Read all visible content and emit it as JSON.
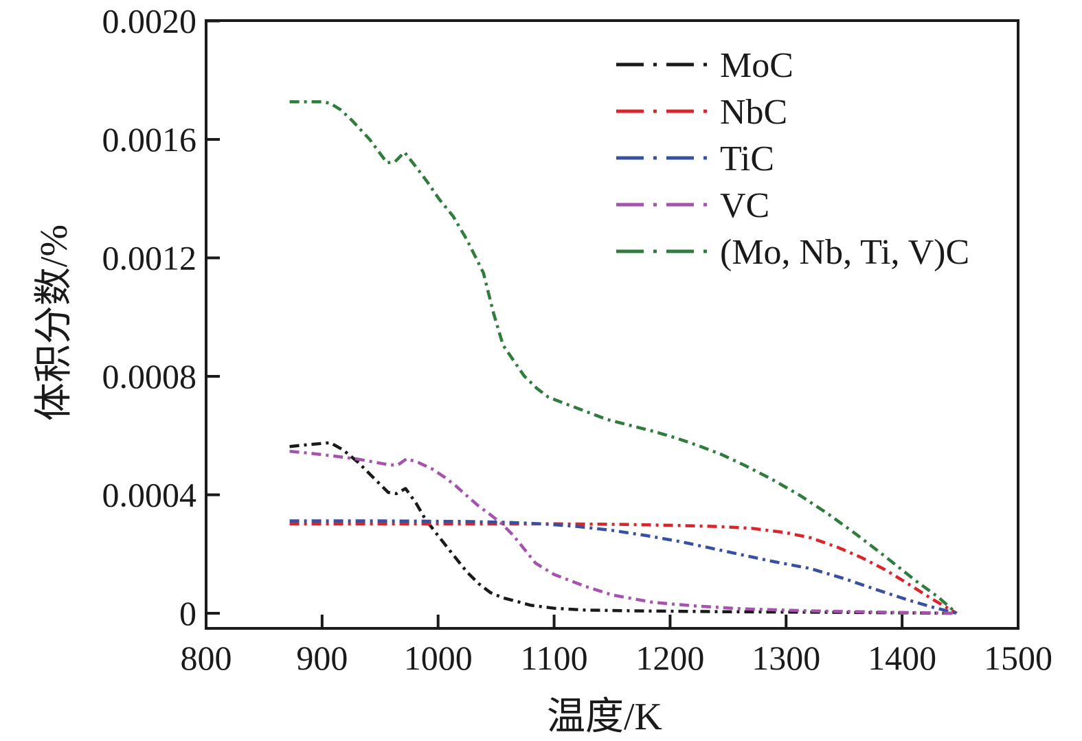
{
  "figure": {
    "background": "#ffffff",
    "text_color": "#1a1a1a"
  },
  "chart_data": {
    "type": "line",
    "title": "",
    "xlabel": "温度/K",
    "ylabel": "体积分数/%",
    "xlim": [
      800,
      1500
    ],
    "ylim": [
      -5e-05,
      0.002
    ],
    "xticks": [
      800,
      900,
      1000,
      1100,
      1200,
      1300,
      1400,
      1500
    ],
    "yticks": [
      0,
      0.0004,
      0.0008,
      0.0012,
      0.0016,
      0.002
    ],
    "ytick_labels": [
      "0",
      "0.0004",
      "0.0008",
      "0.0012",
      "0.0016",
      "0.0020"
    ],
    "grid": false,
    "legend": {
      "position": "upper-right-inside",
      "line_style": "dash-dot"
    },
    "series": [
      {
        "name": "MoC",
        "color": "#1a1a1a",
        "points": [
          [
            872,
            0.000563
          ],
          [
            885,
            0.000568
          ],
          [
            907,
            0.000576
          ],
          [
            918,
            0.000552
          ],
          [
            931,
            0.00051
          ],
          [
            945,
            0.000455
          ],
          [
            957,
            0.000408
          ],
          [
            964,
            0.000404
          ],
          [
            972,
            0.000421
          ],
          [
            981,
            0.000372
          ],
          [
            989,
            0.000318
          ],
          [
            1000,
            0.000262
          ],
          [
            1011,
            0.000207
          ],
          [
            1025,
            0.000139
          ],
          [
            1035,
            0.0001
          ],
          [
            1045,
            7e-05
          ],
          [
            1056,
            5.2e-05
          ],
          [
            1066,
            4.2e-05
          ],
          [
            1080,
            2.7e-05
          ],
          [
            1100,
            1.7e-05
          ],
          [
            1126,
            1.1e-05
          ],
          [
            1170,
            8e-06
          ],
          [
            1250,
            5e-06
          ],
          [
            1350,
            3e-06
          ],
          [
            1447,
            0
          ]
        ]
      },
      {
        "name": "NbC",
        "color": "#d9262b",
        "points": [
          [
            872,
            0.000302
          ],
          [
            1000,
            0.000302
          ],
          [
            1100,
            0.000302
          ],
          [
            1160,
            0.0003
          ],
          [
            1200,
            0.000297
          ],
          [
            1240,
            0.000293
          ],
          [
            1270,
            0.000287
          ],
          [
            1300,
            0.000272
          ],
          [
            1321,
            0.000255
          ],
          [
            1345,
            0.000222
          ],
          [
            1365,
            0.000188
          ],
          [
            1385,
            0.000148
          ],
          [
            1405,
            0.0001
          ],
          [
            1425,
            5e-05
          ],
          [
            1447,
            0
          ]
        ]
      },
      {
        "name": "TiC",
        "color": "#3751a0",
        "points": [
          [
            872,
            0.000312
          ],
          [
            950,
            0.000312
          ],
          [
            1020,
            0.00031
          ],
          [
            1060,
            0.000307
          ],
          [
            1090,
            0.000302
          ],
          [
            1120,
            0.000293
          ],
          [
            1150,
            0.00028
          ],
          [
            1180,
            0.000262
          ],
          [
            1210,
            0.000241
          ],
          [
            1240,
            0.000216
          ],
          [
            1262,
            0.000197
          ],
          [
            1290,
            0.000174
          ],
          [
            1321,
            0.000151
          ],
          [
            1350,
            0.000117
          ],
          [
            1380,
            7.7e-05
          ],
          [
            1405,
            4.5e-05
          ],
          [
            1425,
            2.2e-05
          ],
          [
            1447,
            0
          ]
        ]
      },
      {
        "name": "VC",
        "color": "#a653ae",
        "points": [
          [
            872,
            0.000547
          ],
          [
            890,
            0.00054
          ],
          [
            910,
            0.000531
          ],
          [
            930,
            0.000521
          ],
          [
            947,
            0.000509
          ],
          [
            958,
            0.000501
          ],
          [
            965,
            0.0005
          ],
          [
            973,
            0.000522
          ],
          [
            983,
            0.000509
          ],
          [
            995,
            0.000487
          ],
          [
            1005,
            0.000461
          ],
          [
            1015,
            0.000431
          ],
          [
            1025,
            0.000396
          ],
          [
            1035,
            0.000362
          ],
          [
            1045,
            0.000333
          ],
          [
            1055,
            0.000302
          ],
          [
            1065,
            0.000262
          ],
          [
            1075,
            0.000213
          ],
          [
            1084,
            0.000169
          ],
          [
            1100,
            0.000131
          ],
          [
            1126,
            9.2e-05
          ],
          [
            1150,
            6.2e-05
          ],
          [
            1185,
            3.7e-05
          ],
          [
            1220,
            2.5e-05
          ],
          [
            1262,
            1.5e-05
          ],
          [
            1320,
            8e-06
          ],
          [
            1380,
            4e-06
          ],
          [
            1447,
            0
          ]
        ]
      },
      {
        "name": "(Mo, Nb, Ti, V)C",
        "color": "#2f7c3c",
        "points": [
          [
            872,
            0.001727
          ],
          [
            900,
            0.001727
          ],
          [
            907,
            0.001722
          ],
          [
            916,
            0.0017
          ],
          [
            926,
            0.001663
          ],
          [
            941,
            0.0016
          ],
          [
            956,
            0.001521
          ],
          [
            963,
            0.001525
          ],
          [
            971,
            0.001557
          ],
          [
            981,
            0.001507
          ],
          [
            991,
            0.001455
          ],
          [
            1001,
            0.001398
          ],
          [
            1013,
            0.00134
          ],
          [
            1025,
            0.00126
          ],
          [
            1039,
            0.00115
          ],
          [
            1048,
            0.00101
          ],
          [
            1056,
            0.000905
          ],
          [
            1066,
            0.000848
          ],
          [
            1074,
            0.000802
          ],
          [
            1085,
            0.00076
          ],
          [
            1095,
            0.00073
          ],
          [
            1108,
            0.00071
          ],
          [
            1125,
            0.000685
          ],
          [
            1145,
            0.000655
          ],
          [
            1165,
            0.000635
          ],
          [
            1185,
            0.000615
          ],
          [
            1205,
            0.000592
          ],
          [
            1225,
            0.000565
          ],
          [
            1245,
            0.000535
          ],
          [
            1265,
            0.000498
          ],
          [
            1288,
            0.000452
          ],
          [
            1312,
            0.000398
          ],
          [
            1336,
            0.000336
          ],
          [
            1361,
            0.000265
          ],
          [
            1386,
            0.00019
          ],
          [
            1411,
            0.000112
          ],
          [
            1431,
            5.5e-05
          ],
          [
            1447,
            0
          ]
        ]
      }
    ]
  }
}
